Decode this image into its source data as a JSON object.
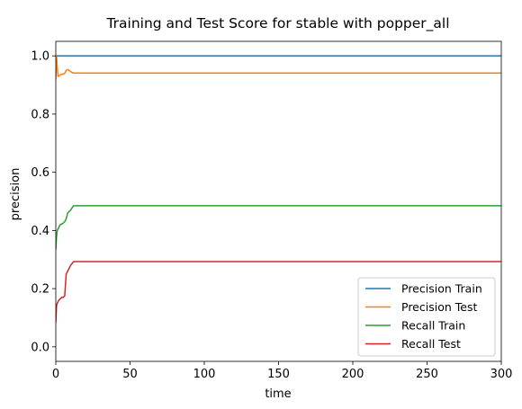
{
  "chart_data": {
    "type": "line",
    "title": "Training and Test Score for stable with popper_all",
    "xlabel": "time",
    "ylabel": "precision",
    "xlim": [
      0,
      300
    ],
    "ylim": [
      -0.05,
      1.05
    ],
    "xticks": [
      0,
      50,
      100,
      150,
      200,
      250,
      300
    ],
    "yticks": [
      0.0,
      0.2,
      0.4,
      0.6,
      0.8,
      1.0
    ],
    "xtick_labels": [
      "0",
      "50",
      "100",
      "150",
      "200",
      "250",
      "300"
    ],
    "ytick_labels": [
      "0.0",
      "0.2",
      "0.4",
      "0.6",
      "0.8",
      "1.0"
    ],
    "grid": false,
    "legend_position": "lower-right",
    "series": [
      {
        "name": "Precision Train",
        "color": "#1f77b4",
        "x": [
          0,
          300
        ],
        "y": [
          1.0,
          1.0
        ]
      },
      {
        "name": "Precision Test",
        "color": "#ff7f0e",
        "x": [
          0,
          0.5,
          1,
          1.5,
          2,
          3,
          4,
          5,
          6,
          7,
          8,
          9,
          10,
          11,
          12,
          14,
          16,
          20,
          300
        ],
        "y": [
          0.92,
          1.0,
          0.96,
          0.93,
          0.93,
          0.935,
          0.937,
          0.937,
          0.94,
          0.95,
          0.953,
          0.95,
          0.946,
          0.943,
          0.941,
          0.941,
          0.941,
          0.941,
          0.941
        ]
      },
      {
        "name": "Recall Train",
        "color": "#2ca02c",
        "x": [
          0,
          0.5,
          1,
          2,
          3,
          5,
          6,
          7,
          8,
          10,
          12,
          14,
          300
        ],
        "y": [
          0.335,
          0.38,
          0.4,
          0.41,
          0.42,
          0.425,
          0.43,
          0.44,
          0.46,
          0.47,
          0.485,
          0.485,
          0.485
        ]
      },
      {
        "name": "Recall Test",
        "color": "#d62728",
        "x": [
          0,
          0.5,
          1,
          2,
          3,
          4,
          5,
          6,
          7,
          8,
          10,
          12,
          14,
          300
        ],
        "y": [
          0.085,
          0.14,
          0.15,
          0.16,
          0.165,
          0.17,
          0.17,
          0.175,
          0.25,
          0.26,
          0.28,
          0.293,
          0.293,
          0.293
        ]
      }
    ]
  }
}
